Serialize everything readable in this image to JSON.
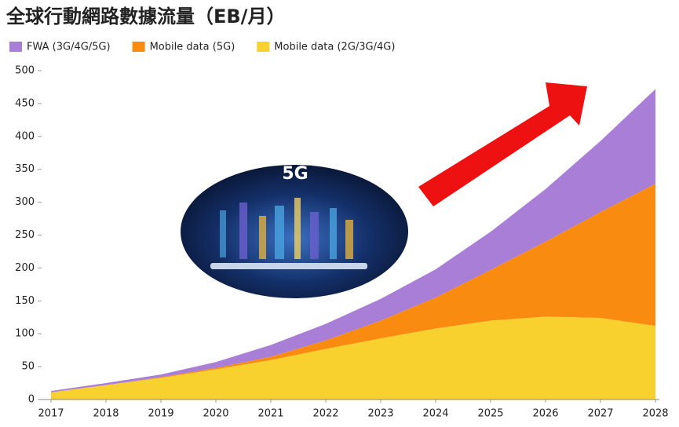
{
  "chart_data": {
    "type": "stacked_area",
    "title": "全球行動網路數據流量（EB/月）",
    "annotation": "5G",
    "x": [
      2017,
      2018,
      2019,
      2020,
      2021,
      2022,
      2023,
      2024,
      2025,
      2026,
      2027,
      2028
    ],
    "xlim": [
      2017,
      2028
    ],
    "xticks": [
      2017,
      2018,
      2019,
      2020,
      2021,
      2022,
      2023,
      2024,
      2025,
      2026,
      2027,
      2028
    ],
    "ylim": [
      0,
      500
    ],
    "yticks": [
      0,
      50,
      100,
      150,
      200,
      250,
      300,
      350,
      400,
      450,
      500
    ],
    "series": [
      {
        "name": "FWA (3G/4G/5G)",
        "color": "#a97ed6",
        "values": [
          2,
          3,
          4,
          9,
          18,
          25,
          33,
          43,
          58,
          80,
          108,
          144
        ]
      },
      {
        "name": "Mobile data (5G)",
        "color": "#f98c10",
        "values": [
          0,
          0,
          1,
          2,
          5,
          13,
          27,
          47,
          77,
          114,
          161,
          216
        ]
      },
      {
        "name": "Mobile data (2G/3G/4G)",
        "color": "#f9d12f",
        "values": [
          11,
          22,
          33,
          46,
          60,
          77,
          93,
          108,
          120,
          126,
          124,
          112
        ]
      }
    ]
  }
}
